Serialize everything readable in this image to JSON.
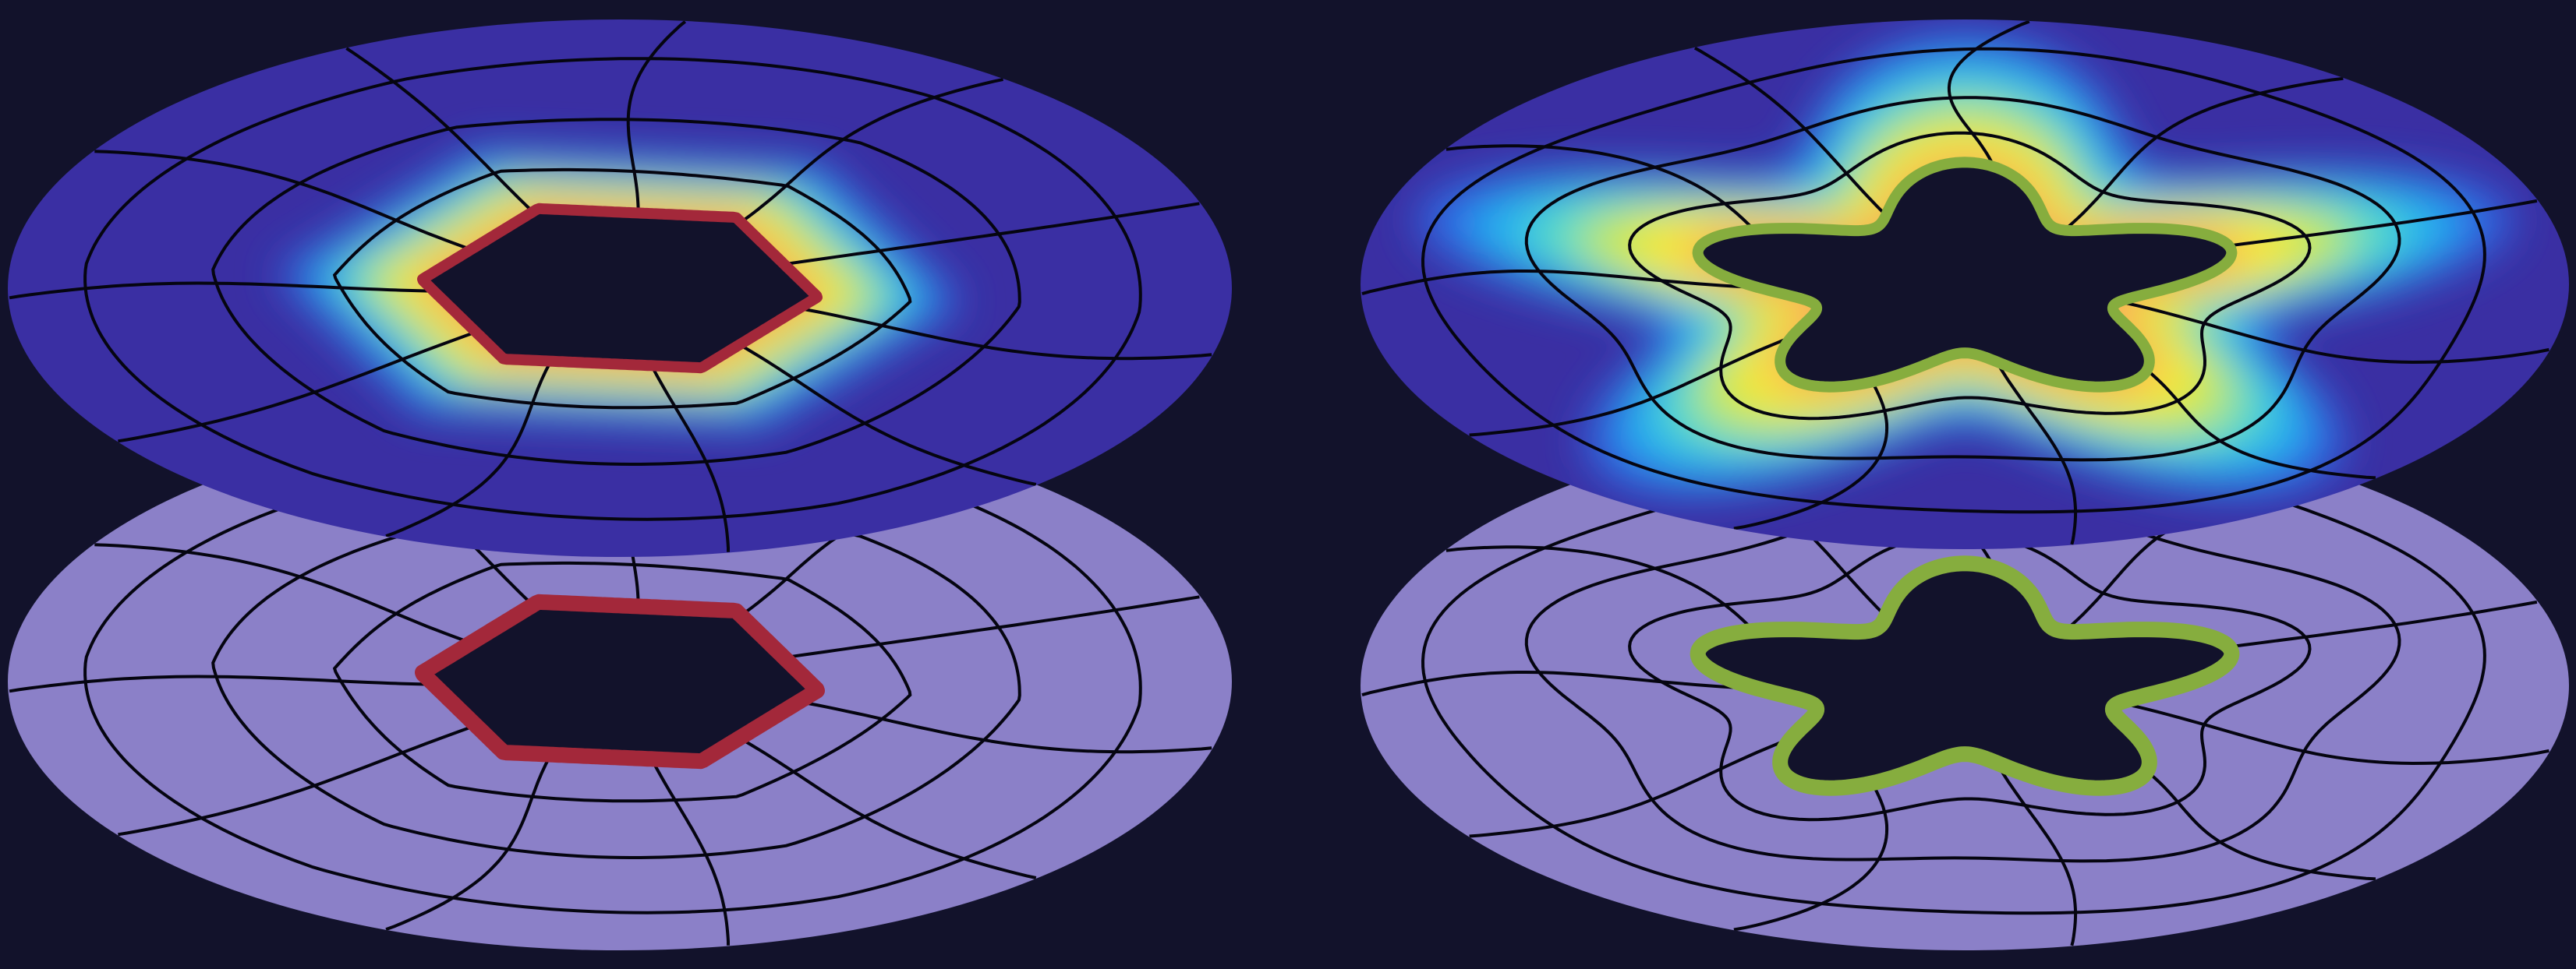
{
  "colors": {
    "background": "#12122b",
    "flat_disk": "#8b80c8",
    "heat_base": "#3a2fa3",
    "grid_line": "#050510",
    "hole": "#12122b",
    "hexagon_outline": "#a3283a",
    "star_outline": "#86ad3e"
  },
  "heat_colormap": [
    "#3a2fa3",
    "#2f6ee8",
    "#23b6ee",
    "#56dcc4",
    "#c9e84a",
    "#fbe83b",
    "#f6a85a"
  ],
  "panels": [
    {
      "name": "hexagon",
      "hole_shape": "hexagon",
      "hole_sides": 6,
      "hole_lobes": 0,
      "outline_color_key": "hexagon_outline",
      "heat_peak": 0.98,
      "heat_falloff": 0.42,
      "warp_amplitude": 0.06
    },
    {
      "name": "star",
      "hole_shape": "star",
      "hole_sides": 0,
      "hole_lobes": 5,
      "outline_color_key": "star_outline",
      "heat_peak": 1.0,
      "heat_falloff": 0.6,
      "warp_amplitude": 0.1
    }
  ]
}
